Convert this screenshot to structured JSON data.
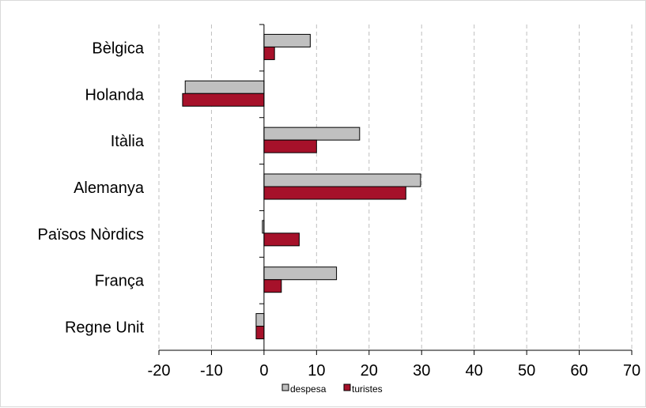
{
  "chart_data": {
    "type": "bar",
    "orientation": "horizontal",
    "categories": [
      "Bèlgica",
      "Holanda",
      "Itàlia",
      "Alemanya",
      "Països Nòrdics",
      "França",
      "Regne Unit"
    ],
    "series": [
      {
        "name": "despesa",
        "color": "#c0c0c0",
        "values": [
          8.8,
          -15,
          18.2,
          29.8,
          -0.3,
          13.8,
          -1.5
        ]
      },
      {
        "name": "turistes",
        "color": "#a6112a",
        "values": [
          2,
          -15.5,
          10,
          27,
          6.7,
          3.3,
          -1.5
        ]
      }
    ],
    "xlim": [
      -20,
      70
    ],
    "xticks": [
      "-20",
      "-10",
      "0",
      "10",
      "20",
      "30",
      "40",
      "50",
      "60",
      "70"
    ],
    "xgrid": true,
    "gridline_style": "dashed",
    "legend_position": "bottom"
  }
}
